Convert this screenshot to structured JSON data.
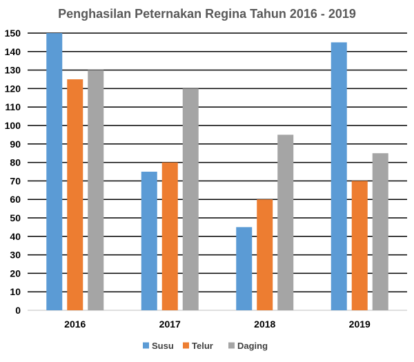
{
  "chart_data": {
    "type": "bar",
    "title": "Penghasilan Peternakan Regina Tahun 2016 - 2019",
    "xlabel": "",
    "ylabel": "",
    "categories": [
      "2016",
      "2017",
      "2018",
      "2019"
    ],
    "series": [
      {
        "name": "Susu",
        "values": [
          150,
          75,
          45,
          145
        ],
        "color": "#5B9BD5"
      },
      {
        "name": "Telur",
        "values": [
          125,
          80,
          60,
          70
        ],
        "color": "#ED7D31"
      },
      {
        "name": "Daging",
        "values": [
          130,
          120,
          95,
          85
        ],
        "color": "#A5A5A5"
      }
    ],
    "ylim": [
      0,
      150
    ],
    "y_ticks": [
      "0",
      "10",
      "20",
      "30",
      "40",
      "50",
      "60",
      "70",
      "80",
      "90",
      "100",
      "110",
      "120",
      "130",
      "140",
      "150"
    ],
    "grid": true,
    "legend_position": "bottom"
  }
}
